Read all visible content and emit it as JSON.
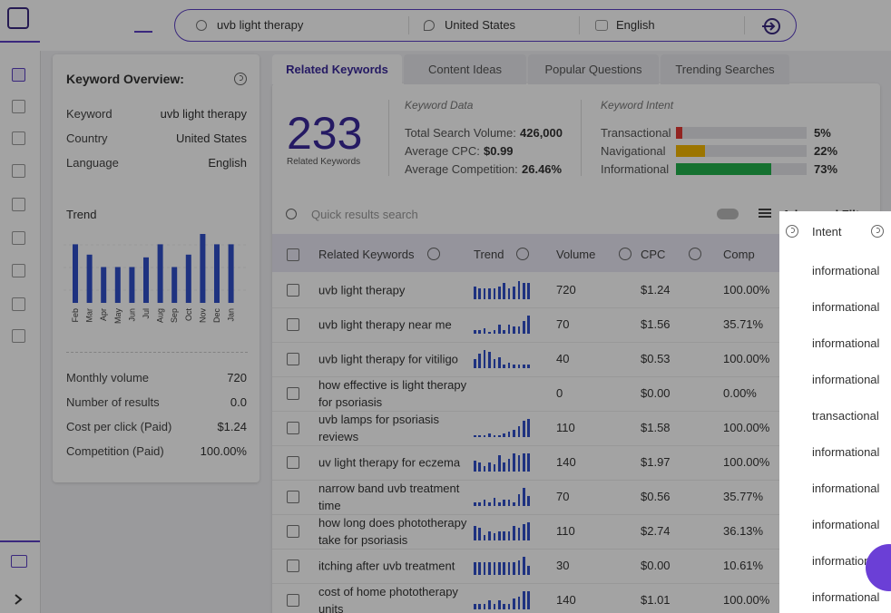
{
  "search": {
    "query": "uvb light therapy",
    "country": "United States",
    "language": "English"
  },
  "overview": {
    "title": "Keyword Overview:",
    "rows": [
      [
        "Keyword",
        "uvb light therapy"
      ],
      [
        "Country",
        "United States"
      ],
      [
        "Language",
        "English"
      ]
    ],
    "trend_label": "Trend",
    "trend": {
      "months": [
        "Feb",
        "Mar",
        "Apr",
        "May",
        "Jun",
        "Jul",
        "Aug",
        "Sep",
        "Oct",
        "Nov",
        "Dec",
        "Jan"
      ],
      "values": [
        85,
        70,
        52,
        52,
        52,
        66,
        85,
        52,
        70,
        100,
        85,
        85
      ]
    },
    "metrics": [
      [
        "Monthly volume",
        "720"
      ],
      [
        "Number of results",
        "0.0"
      ],
      [
        "Cost per click (Paid)",
        "$1.24"
      ],
      [
        "Competition (Paid)",
        "100.00%"
      ]
    ]
  },
  "tabs": [
    "Related Keywords",
    "Content Ideas",
    "Popular Questions",
    "Trending Searches"
  ],
  "summary": {
    "count": "233",
    "count_label": "Related Keywords",
    "data_title": "Keyword Data",
    "data": [
      [
        "Total Search Volume:",
        "426,000"
      ],
      [
        "Average CPC:",
        "$0.99"
      ],
      [
        "Average Competition:",
        "26.46%"
      ]
    ],
    "intent_title": "Keyword Intent",
    "intents": [
      {
        "name": "Transactional",
        "value": 5,
        "label": "5%",
        "color": "#e53935"
      },
      {
        "name": "Navigational",
        "value": 22,
        "label": "22%",
        "color": "#f5b800"
      },
      {
        "name": "Informational",
        "value": 73,
        "label": "73%",
        "color": "#22b14c"
      }
    ]
  },
  "table": {
    "search_placeholder": "Quick results search",
    "filters": "Advanced Filters",
    "headers": [
      "Related Keywords",
      "Trend",
      "Volume",
      "CPC",
      "Comp",
      "Intent"
    ],
    "rows": [
      {
        "keyword": "uvb light therapy",
        "trend": [
          7,
          6,
          6,
          6,
          6,
          7,
          9,
          6,
          7,
          10,
          9,
          9
        ],
        "volume": "720",
        "cpc": "$1.24",
        "comp": "100.00%",
        "intent": "informational"
      },
      {
        "keyword": "uvb light therapy near me",
        "trend": [
          2,
          2,
          3,
          1,
          2,
          5,
          2,
          5,
          4,
          4,
          7,
          10
        ],
        "volume": "70",
        "cpc": "$1.56",
        "comp": "35.71%",
        "intent": "informational"
      },
      {
        "keyword": "uvb light therapy for vitiligo",
        "trend": [
          5,
          8,
          10,
          9,
          5,
          6,
          2,
          3,
          2,
          2,
          2,
          2
        ],
        "volume": "40",
        "cpc": "$0.53",
        "comp": "100.00%",
        "intent": "informational"
      },
      {
        "keyword": "how effective is light therapy for psoriasis",
        "trend": [],
        "volume": "0",
        "cpc": "$0.00",
        "comp": "0.00%",
        "intent": "informational"
      },
      {
        "keyword": "uvb lamps for psoriasis reviews",
        "trend": [
          1,
          1,
          1,
          2,
          1,
          1,
          2,
          3,
          4,
          6,
          9,
          10
        ],
        "volume": "110",
        "cpc": "$1.58",
        "comp": "100.00%",
        "intent": "transactional"
      },
      {
        "keyword": "uv light therapy for eczema",
        "trend": [
          6,
          5,
          3,
          5,
          4,
          9,
          5,
          7,
          10,
          9,
          10,
          10
        ],
        "volume": "140",
        "cpc": "$1.97",
        "comp": "100.00%",
        "intent": "informational"
      },
      {
        "keyword": "narrow band uvb treatment time",
        "trend": [
          2,
          2,
          3,
          2,
          4,
          2,
          3,
          3,
          2,
          6,
          9,
          5
        ],
        "volume": "70",
        "cpc": "$0.56",
        "comp": "35.77%",
        "intent": "informational"
      },
      {
        "keyword": "how long does phototherapy take for psoriasis",
        "trend": [
          8,
          7,
          3,
          5,
          4,
          5,
          5,
          5,
          8,
          7,
          9,
          10
        ],
        "volume": "110",
        "cpc": "$2.74",
        "comp": "36.13%",
        "intent": "informational"
      },
      {
        "keyword": "itching after uvb treatment",
        "trend": [
          7,
          7,
          7,
          7,
          7,
          7,
          7,
          7,
          7,
          8,
          10,
          5
        ],
        "volume": "30",
        "cpc": "$0.00",
        "comp": "10.61%",
        "intent": "informational"
      },
      {
        "keyword": "cost of home phototherapy units",
        "trend": [
          3,
          3,
          3,
          5,
          3,
          5,
          3,
          3,
          6,
          7,
          10,
          10
        ],
        "volume": "140",
        "cpc": "$1.01",
        "comp": "100.00%",
        "intent": "informational"
      }
    ]
  }
}
